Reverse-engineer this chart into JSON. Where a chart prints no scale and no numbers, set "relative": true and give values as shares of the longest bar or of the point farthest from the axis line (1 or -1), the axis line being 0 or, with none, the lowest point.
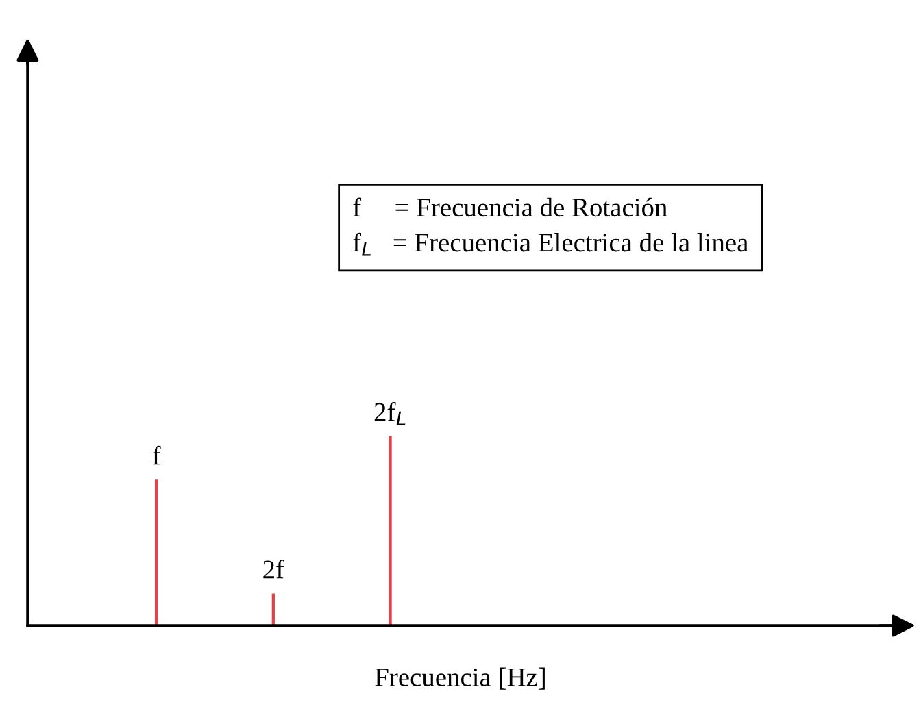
{
  "chart_data": {
    "type": "bar",
    "relative": true,
    "xlabel": "Frecuencia [Hz]",
    "categories": [
      "f",
      "2f",
      "2f$_{L}$"
    ],
    "values": [
      0.77,
      0.17,
      1
    ],
    "color": "#e8404a",
    "annotations": [
      "f     = Frecuencia de Rotación",
      "f$_{L}$   = Frecuencia Electrica de la linea"
    ]
  }
}
